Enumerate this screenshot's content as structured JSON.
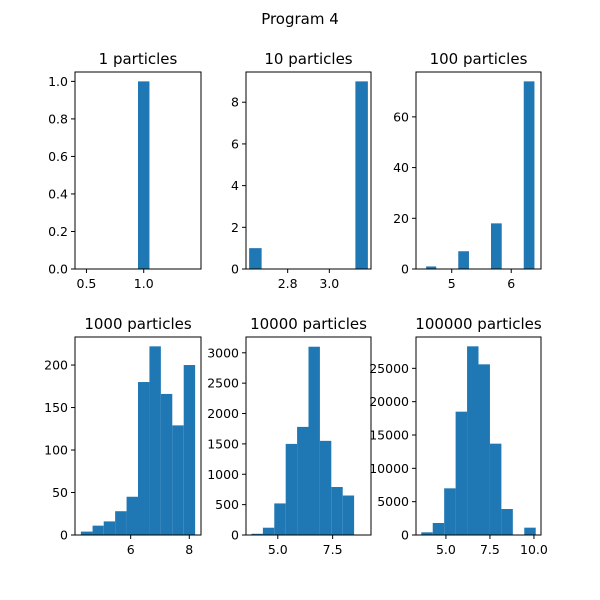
{
  "figure": {
    "suptitle": "Program 4",
    "bar_color": "#1f77b4"
  },
  "chart_data": [
    {
      "type": "bar",
      "title": "1 particles",
      "bins": [
        [
          0.95,
          1.05,
          1
        ]
      ],
      "xlim": [
        0.4,
        1.5
      ],
      "ylim": [
        0,
        1.05
      ],
      "xticks": [
        0.5,
        1.0
      ],
      "xtick_labels": [
        "0.5",
        "1.0"
      ],
      "yticks": [
        0,
        0.2,
        0.4,
        0.6,
        0.8,
        1.0
      ],
      "ytick_labels": [
        "0.0",
        "0.2",
        "0.4",
        "0.6",
        "0.8",
        "1.0"
      ]
    },
    {
      "type": "bar",
      "title": "10 particles",
      "bins": [
        [
          2.615,
          2.675,
          1
        ],
        [
          3.125,
          3.185,
          9
        ]
      ],
      "xlim": [
        2.6,
        3.2
      ],
      "ylim": [
        0,
        9.45
      ],
      "xticks": [
        2.8,
        3.0
      ],
      "xtick_labels": [
        "2.8",
        "3.0"
      ],
      "yticks": [
        0,
        2,
        4,
        6,
        8
      ],
      "ytick_labels": [
        "0",
        "2",
        "4",
        "6",
        "8"
      ]
    },
    {
      "type": "bar",
      "title": "100 particles",
      "bins": [
        [
          4.57,
          4.74,
          1
        ],
        [
          5.11,
          5.29,
          7
        ],
        [
          5.66,
          5.84,
          18
        ],
        [
          6.21,
          6.39,
          74
        ]
      ],
      "xlim": [
        4.4,
        6.5
      ],
      "ylim": [
        0,
        77.7
      ],
      "xticks": [
        5,
        6
      ],
      "xtick_labels": [
        "5",
        "6"
      ],
      "yticks": [
        0,
        20,
        40,
        60
      ],
      "ytick_labels": [
        "0",
        "20",
        "40",
        "60"
      ]
    },
    {
      "type": "bar",
      "title": "1000 particles",
      "bins": [
        [
          4.3,
          4.7,
          4
        ],
        [
          4.7,
          5.08,
          11
        ],
        [
          5.08,
          5.47,
          16
        ],
        [
          5.47,
          5.86,
          28
        ],
        [
          5.86,
          6.25,
          45
        ],
        [
          6.25,
          6.64,
          180
        ],
        [
          6.64,
          7.03,
          222
        ],
        [
          7.03,
          7.42,
          166
        ],
        [
          7.42,
          7.81,
          129
        ],
        [
          7.81,
          8.2,
          200
        ]
      ],
      "xlim": [
        4.1,
        8.4
      ],
      "ylim": [
        0,
        233
      ],
      "xticks": [
        6,
        8
      ],
      "xtick_labels": [
        "6",
        "8"
      ],
      "yticks": [
        0,
        50,
        100,
        150,
        200
      ],
      "ytick_labels": [
        "0",
        "50",
        "100",
        "150",
        "200"
      ]
    },
    {
      "type": "bar",
      "title": "10000 particles",
      "bins": [
        [
          3.8,
          4.32,
          20
        ],
        [
          4.32,
          4.84,
          120
        ],
        [
          4.84,
          5.36,
          520
        ],
        [
          5.36,
          5.88,
          1500
        ],
        [
          5.88,
          6.4,
          1780
        ],
        [
          6.4,
          6.92,
          3100
        ],
        [
          6.92,
          7.44,
          1550
        ],
        [
          7.44,
          7.96,
          790
        ],
        [
          7.96,
          8.48,
          650
        ],
        [
          8.48,
          9.0,
          0
        ]
      ],
      "xlim": [
        3.55,
        9.25
      ],
      "ylim": [
        0,
        3260
      ],
      "xticks": [
        5.0,
        7.5
      ],
      "xtick_labels": [
        "5.0",
        "7.5"
      ],
      "yticks": [
        0,
        500,
        1000,
        1500,
        2000,
        2500,
        3000
      ],
      "ytick_labels": [
        "0",
        "500",
        "1000",
        "1500",
        "2000",
        "2500",
        "3000"
      ]
    },
    {
      "type": "bar",
      "title": "100000 particles",
      "bins": [
        [
          3.6,
          4.25,
          400
        ],
        [
          4.25,
          4.9,
          1800
        ],
        [
          4.9,
          5.55,
          7000
        ],
        [
          5.55,
          6.2,
          18500
        ],
        [
          6.2,
          6.85,
          28300
        ],
        [
          6.85,
          7.5,
          25600
        ],
        [
          7.5,
          8.15,
          13700
        ],
        [
          8.15,
          8.8,
          3900
        ],
        [
          8.8,
          9.45,
          0
        ],
        [
          9.45,
          10.1,
          1100
        ]
      ],
      "xlim": [
        3.3,
        10.4
      ],
      "ylim": [
        0,
        29700
      ],
      "xticks": [
        5.0,
        7.5,
        10.0
      ],
      "xtick_labels": [
        "5.0",
        "7.5",
        "10.0"
      ],
      "yticks": [
        0,
        5000,
        10000,
        15000,
        20000,
        25000
      ],
      "ytick_labels": [
        "0",
        "5000",
        "10000",
        "15000",
        "20000",
        "25000"
      ]
    }
  ]
}
